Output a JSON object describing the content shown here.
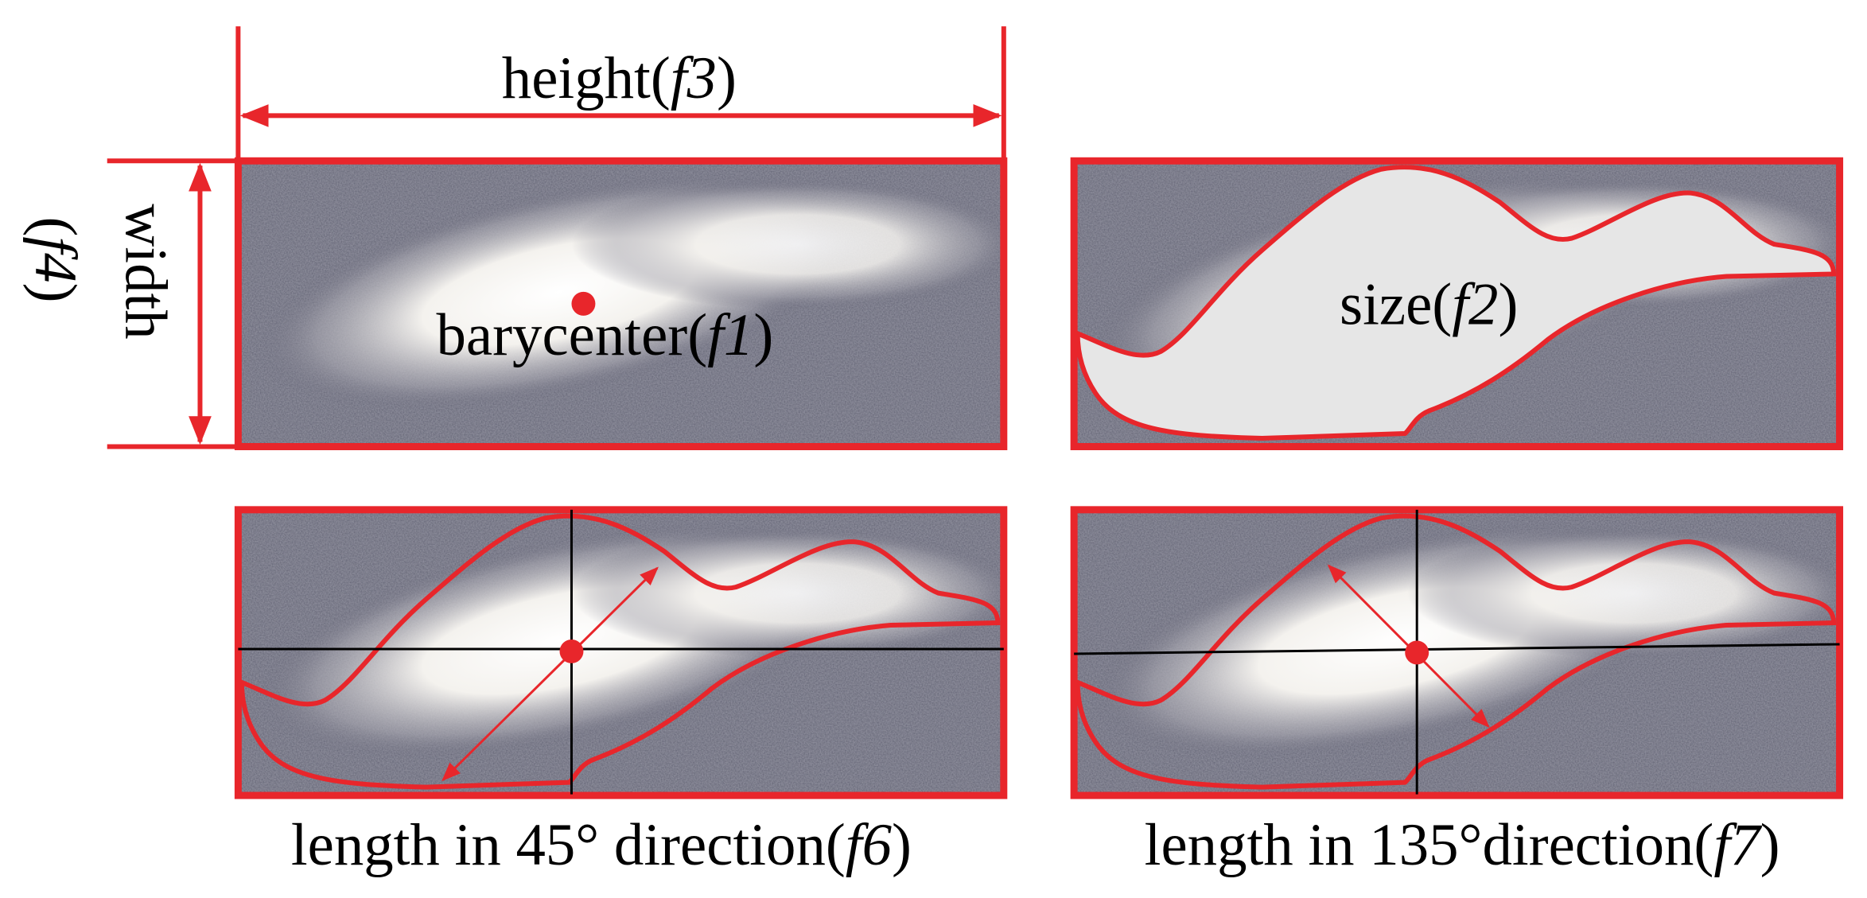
{
  "labels": {
    "height": {
      "text": "height(",
      "italic": "f3",
      "close": ")"
    },
    "width": {
      "text": "width",
      "open": "(",
      "italic": "f4",
      "close": ")"
    },
    "barycenter": {
      "text": "barycenter(",
      "italic": "f1",
      "close": ")"
    },
    "size": {
      "text": "size(",
      "italic": "f2",
      "close": ")"
    },
    "length45": {
      "text": "length in 45° direction(",
      "italic": "f6",
      "close": ")"
    },
    "length135": {
      "text": "length in 135°direction(",
      "italic": "f7",
      "close": ")"
    }
  }
}
